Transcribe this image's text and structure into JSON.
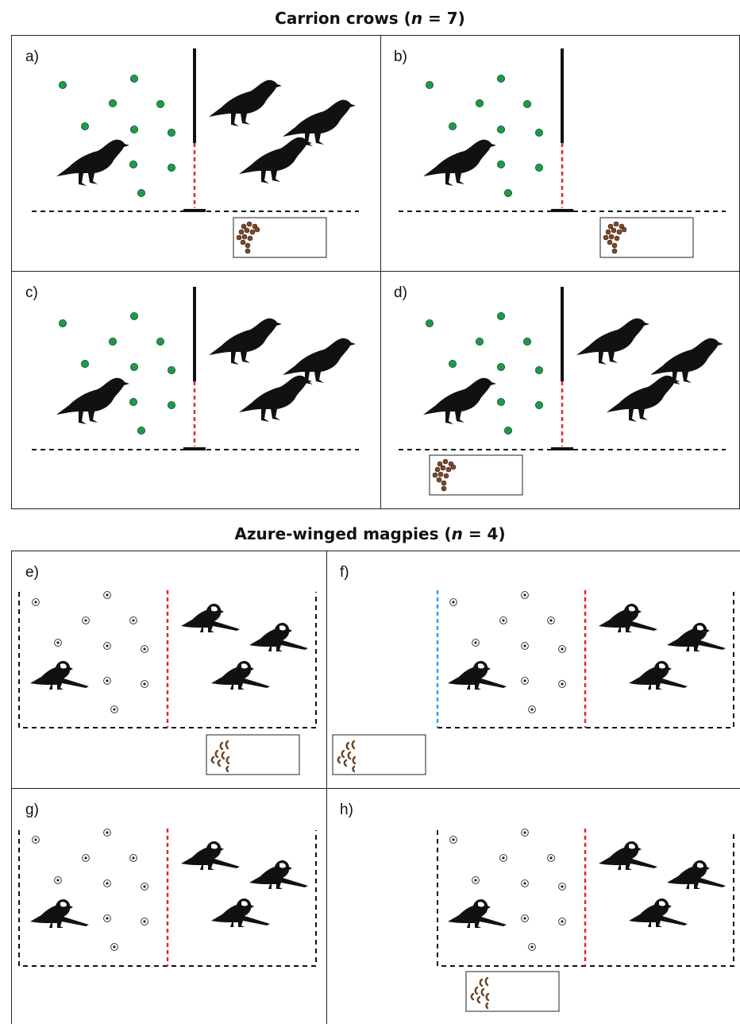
{
  "figure": {
    "sections": [
      {
        "title_main": "Carrion crows (",
        "title_n": "n",
        "title_rest": " = 7)",
        "panels": [
          {
            "label": "a)"
          },
          {
            "label": "b)"
          },
          {
            "label": "c)"
          },
          {
            "label": "d)"
          }
        ]
      },
      {
        "title_main": "Azure-winged magpies (",
        "title_n": "n",
        "title_rest": " = 4)",
        "panels": [
          {
            "label": "e)"
          },
          {
            "label": "f)"
          },
          {
            "label": "g)"
          },
          {
            "label": "h)"
          }
        ]
      }
    ],
    "colors": {
      "divider_red": "#e8232a",
      "divider_blue": "#29a8e0",
      "stone_green": "#1f9a4a",
      "food_brown": "#7a4a2a",
      "line_black": "#111111"
    },
    "icons": {
      "bird_crow": "crow-silhouette",
      "bird_magpie": "magpie-silhouette",
      "stone": "green-dot",
      "ring": "concentric-ring",
      "food_pellets": "food-pellets",
      "food_worms": "mealworms"
    }
  }
}
